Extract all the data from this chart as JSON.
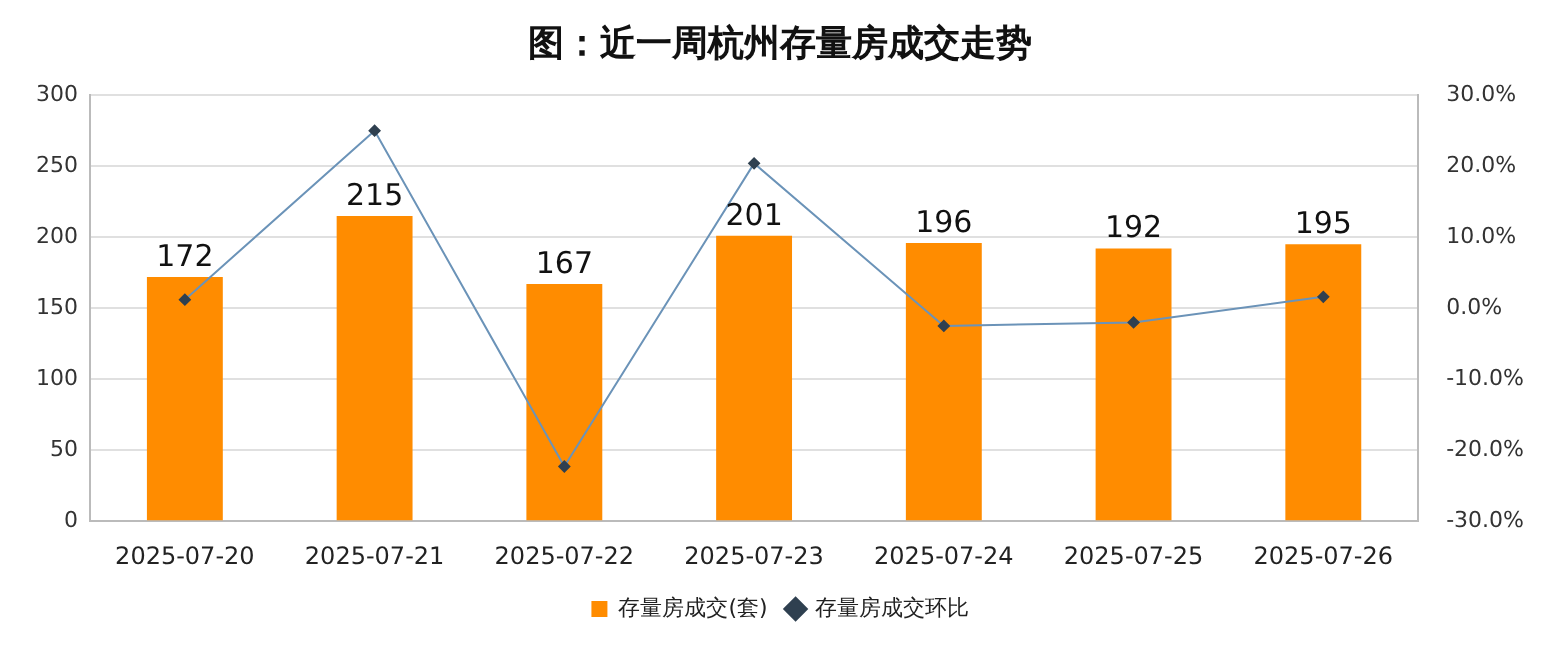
{
  "chart_data": {
    "type": "bar",
    "title": "图：近一周杭州存量房成交走势",
    "categories": [
      "2025-07-20",
      "2025-07-21",
      "2025-07-22",
      "2025-07-23",
      "2025-07-24",
      "2025-07-25",
      "2025-07-26"
    ],
    "series": [
      {
        "name": "存量房成交(套)",
        "color": "#ff8c00",
        "values": [
          172,
          215,
          167,
          201,
          196,
          192,
          195
        ],
        "value_labels": [
          "172",
          "215",
          "167",
          "201",
          "196",
          "192",
          "195"
        ]
      },
      {
        "name": "存量房成交环比",
        "type": "line",
        "axis": "y2",
        "color": "#6b93b8",
        "marker": "diamond",
        "values": [
          1.2,
          25.0,
          -22.3,
          20.4,
          -2.5,
          -2.0,
          1.6
        ]
      }
    ],
    "ylim": [
      0,
      300
    ],
    "yticks": [
      0,
      50,
      100,
      150,
      200,
      250,
      300
    ],
    "y2lim": [
      -30,
      30
    ],
    "y2ticks": [
      {
        "value": -30,
        "label": "-30.0%"
      },
      {
        "value": -20,
        "label": "-20.0%"
      },
      {
        "value": -10,
        "label": "-10.0%"
      },
      {
        "value": 0,
        "label": "0.0%"
      },
      {
        "value": 10,
        "label": "10.0%"
      },
      {
        "value": 20,
        "label": "20.0%"
      },
      {
        "value": 30,
        "label": "30.0%"
      }
    ],
    "grid": "y",
    "legend": "bottom"
  }
}
